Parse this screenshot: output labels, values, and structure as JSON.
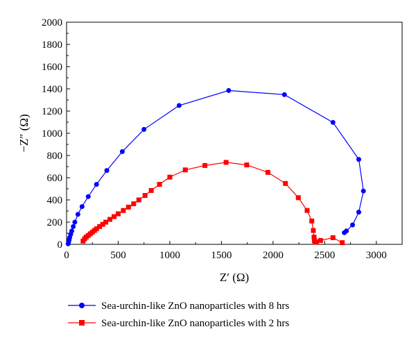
{
  "chart_data": {
    "type": "scatter",
    "xlabel": "Z′ (Ω)",
    "ylabel": "−Z″ (Ω)",
    "xlim": [
      0,
      3250
    ],
    "ylim": [
      0,
      2000
    ],
    "x_ticks": [
      0,
      500,
      1000,
      1500,
      2000,
      2500,
      3000
    ],
    "y_ticks": [
      0,
      200,
      400,
      600,
      800,
      1000,
      1200,
      1400,
      1600,
      1800,
      2000
    ],
    "grid": false,
    "legend_position": "bottom",
    "series": [
      {
        "name": "Sea-urchin-like ZnO nanoparticles with 8 hrs",
        "color": "#0000ff",
        "marker": "circle",
        "points": [
          [
            15,
            5
          ],
          [
            20,
            20
          ],
          [
            25,
            40
          ],
          [
            30,
            60
          ],
          [
            40,
            90
          ],
          [
            50,
            120
          ],
          [
            65,
            160
          ],
          [
            80,
            200
          ],
          [
            110,
            270
          ],
          [
            150,
            340
          ],
          [
            210,
            430
          ],
          [
            290,
            540
          ],
          [
            390,
            665
          ],
          [
            540,
            835
          ],
          [
            750,
            1035
          ],
          [
            1090,
            1250
          ],
          [
            1570,
            1385
          ],
          [
            2110,
            1348
          ],
          [
            2580,
            1098
          ],
          [
            2830,
            765
          ],
          [
            2875,
            480
          ],
          [
            2830,
            290
          ],
          [
            2770,
            175
          ],
          [
            2710,
            120
          ],
          [
            2690,
            105
          ]
        ]
      },
      {
        "name": "Sea-urchin-like ZnO nanoparticles with 2 hrs",
        "color": "#ff0000",
        "marker": "square",
        "points": [
          [
            160,
            30
          ],
          [
            175,
            50
          ],
          [
            190,
            65
          ],
          [
            210,
            80
          ],
          [
            230,
            95
          ],
          [
            250,
            110
          ],
          [
            270,
            125
          ],
          [
            290,
            140
          ],
          [
            320,
            160
          ],
          [
            350,
            180
          ],
          [
            380,
            200
          ],
          [
            420,
            225
          ],
          [
            460,
            250
          ],
          [
            500,
            275
          ],
          [
            550,
            305
          ],
          [
            600,
            335
          ],
          [
            650,
            365
          ],
          [
            700,
            400
          ],
          [
            760,
            440
          ],
          [
            820,
            485
          ],
          [
            900,
            540
          ],
          [
            1000,
            605
          ],
          [
            1150,
            670
          ],
          [
            1340,
            710
          ],
          [
            1545,
            738
          ],
          [
            1745,
            715
          ],
          [
            1950,
            648
          ],
          [
            2120,
            548
          ],
          [
            2245,
            420
          ],
          [
            2330,
            305
          ],
          [
            2375,
            210
          ],
          [
            2390,
            125
          ],
          [
            2397,
            65
          ],
          [
            2400,
            35
          ],
          [
            2405,
            20
          ],
          [
            2420,
            22
          ],
          [
            2460,
            35
          ],
          [
            2580,
            60
          ],
          [
            2670,
            15
          ]
        ]
      }
    ]
  }
}
